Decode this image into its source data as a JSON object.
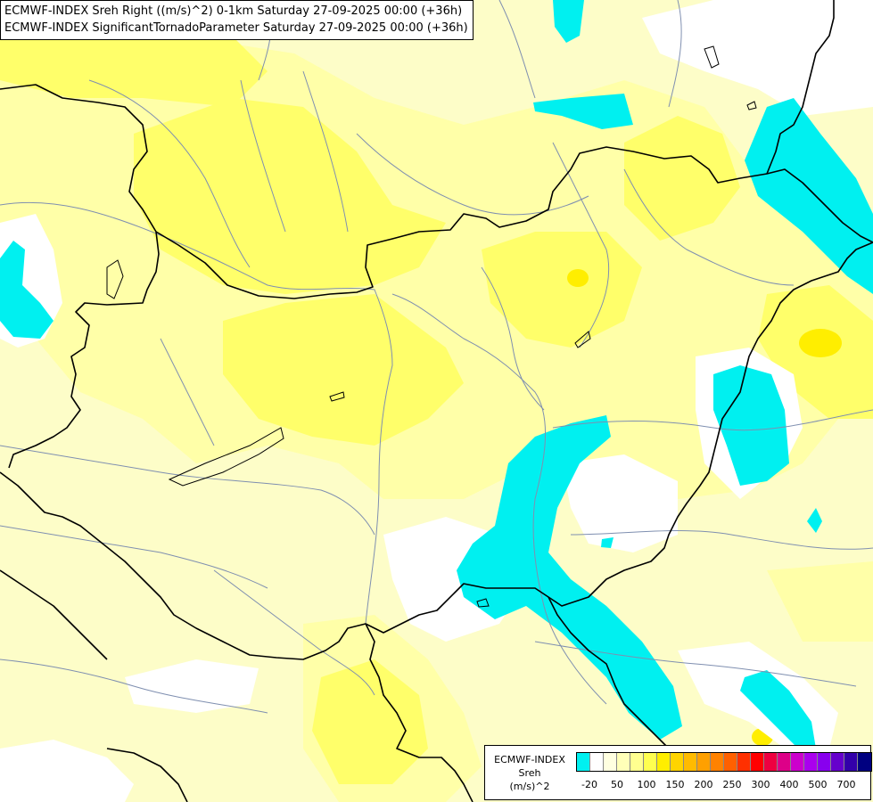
{
  "header": {
    "line1": "ECMWF-INDEX Sreh Right ((m/s)^2) 0-1km Saturday 27-09-2025 00:00 (+36h)",
    "line2": "ECMWF-INDEX SignificantTornadoParameter Saturday 27-09-2025 00:00 (+36h)"
  },
  "legend": {
    "title": [
      "ECMWF-INDEX",
      "Sreh",
      "(m/s)^2"
    ],
    "colors": [
      "#00f0f0",
      "#ffffff",
      "#ffffe0",
      "#ffffb8",
      "#ffff90",
      "#ffff50",
      "#ffee00",
      "#ffd400",
      "#ffbb00",
      "#ffa000",
      "#ff8200",
      "#ff6000",
      "#ff3000",
      "#ff0000",
      "#ee0040",
      "#dd0088",
      "#cc00cc",
      "#aa00ee",
      "#8800ee",
      "#6600cc",
      "#3300aa",
      "#000080"
    ],
    "ticks": [
      "-20",
      "50",
      "100",
      "150",
      "200",
      "250",
      "300",
      "400",
      "500",
      "700"
    ]
  },
  "colors": {
    "cyan": "#00f0f0",
    "white": "#ffffff",
    "pale": "#fdfdc8",
    "yellow_light": "#ffff90",
    "yellow": "#ffff50",
    "yellow_strong": "#ffee00",
    "border": "#000000",
    "river": "#7f8fb0"
  }
}
